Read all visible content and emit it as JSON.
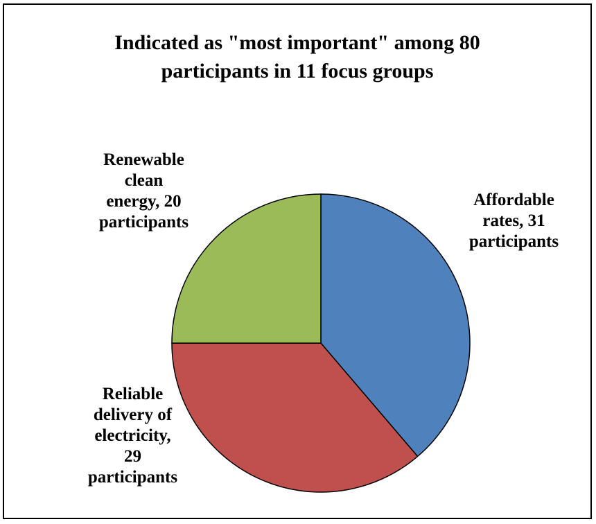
{
  "chart_data": {
    "type": "pie",
    "title_lines": [
      "Indicated as \"most important\" among 80",
      "participants in 11 focus groups"
    ],
    "slices": [
      {
        "name": "Affordable rates",
        "value": 31,
        "color": "#4f81bd",
        "label_lines": [
          "Affordable",
          "rates, 31",
          "participants"
        ]
      },
      {
        "name": "Reliable delivery of electricity",
        "value": 29,
        "color": "#c0504d",
        "label_lines": [
          "Reliable",
          "delivery of",
          "electricity,",
          "29",
          "participants"
        ]
      },
      {
        "name": "Renewable clean energy",
        "value": 20,
        "color": "#9bbb59",
        "label_lines": [
          "Renewable",
          "clean",
          "energy, 20",
          "participants"
        ]
      }
    ],
    "start_angle": "12 o'clock",
    "direction": "clockwise",
    "legend": "none"
  }
}
